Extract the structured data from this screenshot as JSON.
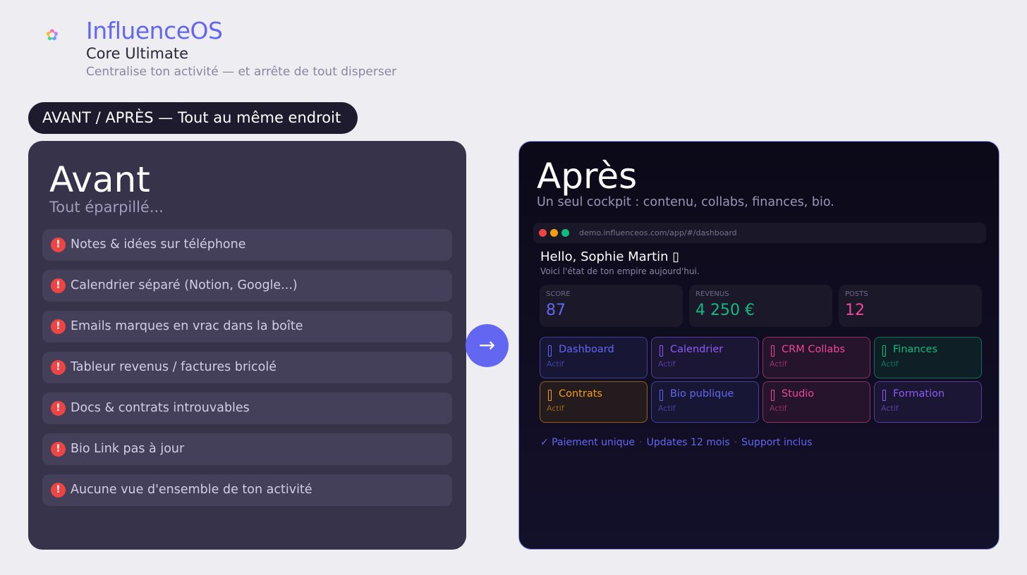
{
  "header": {
    "logo_icon": "flower-logo-icon",
    "title": "InfluenceOS",
    "subtitle": "Core Ultimate",
    "tagline": "Centralise ton activité — et arrête de tout disperser"
  },
  "pill": "AVANT / APRÈS — Tout au même endroit",
  "before": {
    "title": "Avant",
    "subtitle": "Tout éparpillé...",
    "icon": "exclamation-icon",
    "items": [
      "Notes & idées sur téléphone",
      "Calendrier séparé (Notion, Google...)",
      "Emails marques en vrac dans la boîte",
      "Tableur revenus / factures bricolé",
      "Docs & contrats introuvables",
      "Bio Link pas à jour",
      "Aucune vue d'ensemble de ton activité"
    ]
  },
  "arrow_icon": "arrow-right-icon",
  "after": {
    "title": "Après",
    "subtitle": "Un seul cockpit : contenu, collabs, finances, bio.",
    "browser": {
      "url": "demo.influenceos.com/app/#/dashboard",
      "dots": [
        "#ef4444",
        "#f59e0b",
        "#10b981"
      ]
    },
    "greeting": "Hello, Sophie Martin ▯",
    "greeting_sub": "Voici l'état de ton empire aujourd'hui.",
    "stats": [
      {
        "label": "SCORE",
        "value": "87",
        "color": "#6366f1"
      },
      {
        "label": "REVENUS",
        "value": "4 250 €",
        "color": "#10b981"
      },
      {
        "label": "POSTS",
        "value": "12",
        "color": "#ec4899"
      }
    ],
    "modules": [
      {
        "name": "Dashboard",
        "status": "Actif",
        "color": "#6366f1",
        "bg": "#171634"
      },
      {
        "name": "Calendrier",
        "status": "Actif",
        "color": "#8b5cf6",
        "bg": "#1b1633"
      },
      {
        "name": "CRM Collabs",
        "status": "Actif",
        "color": "#ec4899",
        "bg": "#25142c"
      },
      {
        "name": "Finances",
        "status": "Actif",
        "color": "#10b981",
        "bg": "#0f1f26"
      },
      {
        "name": "Contrats",
        "status": "Actif",
        "color": "#f59e0b",
        "bg": "#241b1f"
      },
      {
        "name": "Bio publique",
        "status": "Actif",
        "color": "#6366f1",
        "bg": "#171634"
      },
      {
        "name": "Studio",
        "status": "Actif",
        "color": "#ec4899",
        "bg": "#25142c"
      },
      {
        "name": "Formation",
        "status": "Actif",
        "color": "#8b5cf6",
        "bg": "#1b1633"
      }
    ],
    "footer": [
      "✓ Paiement unique",
      "·",
      "Updates 12 mois",
      "·",
      "Support inclus"
    ]
  }
}
